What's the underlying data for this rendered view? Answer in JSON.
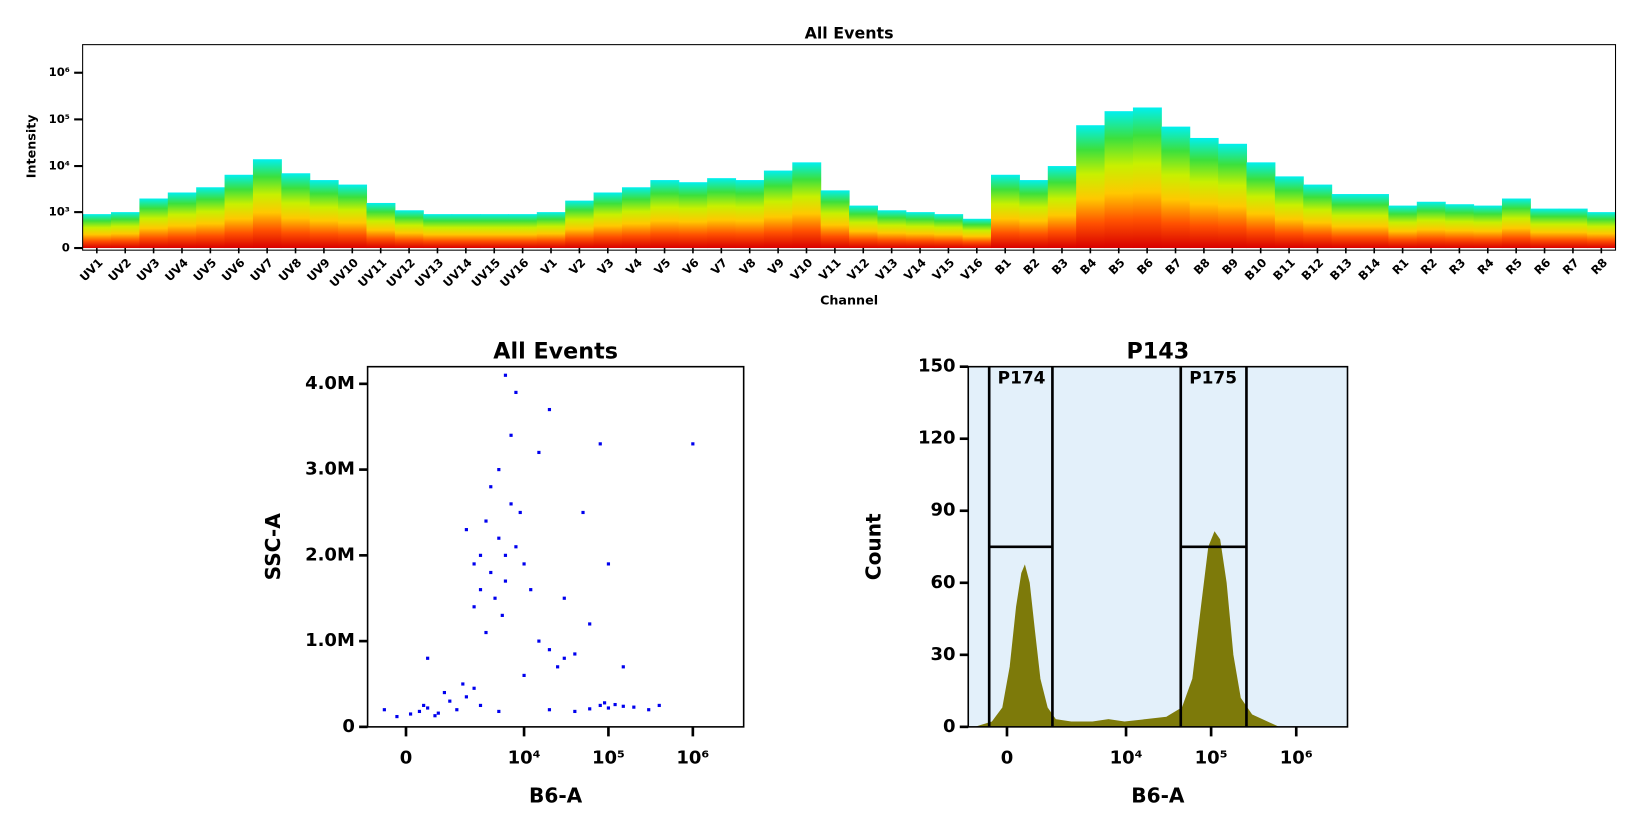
{
  "chart_data": [
    {
      "type": "spectrum",
      "title": "All Events",
      "xlabel": "Channel",
      "ylabel": "Intensity",
      "categories": [
        "UV1",
        "UV2",
        "UV3",
        "UV4",
        "UV5",
        "UV6",
        "UV7",
        "UV8",
        "UV9",
        "UV10",
        "UV11",
        "UV12",
        "UV13",
        "UV14",
        "UV15",
        "UV16",
        "V1",
        "V2",
        "V3",
        "V4",
        "V5",
        "V6",
        "V7",
        "V8",
        "V9",
        "V10",
        "V11",
        "V12",
        "V13",
        "V14",
        "V15",
        "V16",
        "B1",
        "B2",
        "B3",
        "B4",
        "B5",
        "B6",
        "B7",
        "B8",
        "B9",
        "B10",
        "B11",
        "B12",
        "B13",
        "B14",
        "R1",
        "R2",
        "R3",
        "R4",
        "R5",
        "R6",
        "R7",
        "R8"
      ],
      "values": [
        900,
        1000,
        2000,
        2700,
        3500,
        6500,
        14000,
        7000,
        5000,
        4000,
        1600,
        1100,
        900,
        900,
        900,
        900,
        1000,
        1800,
        2700,
        3500,
        5000,
        4500,
        5500,
        5000,
        8000,
        12000,
        3000,
        1400,
        1100,
        1000,
        900,
        700,
        6500,
        5000,
        10000,
        75000,
        150000,
        180000,
        70000,
        40000,
        30000,
        12000,
        6000,
        4000,
        2500,
        2500,
        1400,
        1700,
        1500,
        1400,
        2000,
        1200,
        1200,
        1000
      ],
      "colormap": [
        "#d80000",
        "#ff5000",
        "#ffc800",
        "#c8f000",
        "#3ce03c",
        "#00f0f0"
      ],
      "y_scale": "biexponential",
      "ylim": [
        0,
        4000000
      ],
      "yticks": [
        0,
        {
          "value": 1000,
          "label": "10³"
        },
        {
          "value": 10000,
          "label": "10⁴"
        },
        {
          "value": 100000,
          "label": "10⁵"
        },
        {
          "value": 1000000,
          "label": "10⁶"
        }
      ]
    },
    {
      "type": "scatter",
      "title": "All Events",
      "xlabel": "B6-A",
      "ylabel": "SSC-A",
      "color": "#0000ee",
      "x": [
        100,
        300,
        -200,
        500,
        800,
        1200,
        1500,
        2000,
        400,
        -500,
        2500,
        700,
        1800,
        1000,
        3000,
        3000,
        4000,
        5000,
        2500,
        6000,
        3500,
        8000,
        4500,
        2000,
        7000,
        5500,
        3000,
        10000,
        4000,
        6000,
        2500,
        9000,
        12000,
        5000,
        7000,
        8000,
        6000,
        15000,
        3500,
        20000,
        30000,
        25000,
        40000,
        15000,
        80000,
        100000,
        120000,
        150000,
        200000,
        90000,
        300000,
        60000,
        20000,
        40000,
        30000,
        50000,
        80000,
        60000,
        100000,
        1000000,
        10000,
        500,
        20000,
        150000,
        400000,
        5000
      ],
      "y": [
        150000,
        180000,
        120000,
        220000,
        160000,
        300000,
        200000,
        350000,
        250000,
        200000,
        450000,
        130000,
        500000,
        400000,
        250000,
        2000000,
        1800000,
        2200000,
        1900000,
        1700000,
        2400000,
        2100000,
        1500000,
        2300000,
        2600000,
        1300000,
        1600000,
        1900000,
        2800000,
        2000000,
        1400000,
        2500000,
        1600000,
        3000000,
        3400000,
        3900000,
        4100000,
        3200000,
        1100000,
        900000,
        800000,
        700000,
        850000,
        1000000,
        250000,
        220000,
        260000,
        240000,
        230000,
        280000,
        200000,
        210000,
        200000,
        180000,
        1500000,
        2500000,
        3300000,
        1200000,
        1900000,
        3300000,
        600000,
        800000,
        3700000,
        700000,
        250000,
        180000
      ],
      "x_scale": "biexponential",
      "xlim": [
        -1000,
        4000000
      ],
      "xticks": [
        0,
        {
          "value": 10000,
          "label": "10⁴"
        },
        {
          "value": 100000,
          "label": "10⁵"
        },
        {
          "value": 1000000,
          "label": "10⁶"
        }
      ],
      "ylim": [
        0,
        4200000
      ],
      "yticks": [
        0,
        {
          "value": 1000000,
          "label": "1.0M"
        },
        {
          "value": 2000000,
          "label": "2.0M"
        },
        {
          "value": 3000000,
          "label": "3.0M"
        },
        {
          "value": 4000000,
          "label": "4.0M"
        }
      ]
    },
    {
      "type": "area",
      "title": "P143",
      "xlabel": "B6-A",
      "ylabel": "Count",
      "color": "#7d7a0a",
      "background": "#e3f0fa",
      "x": [
        -740,
        -330,
        -90,
        70,
        210,
        330,
        400,
        510,
        650,
        810,
        1050,
        1380,
        2200,
        4000,
        6200,
        9600,
        17000,
        30000,
        46000,
        61000,
        77000,
        94000,
        110000,
        126000,
        150000,
        180000,
        220000,
        300000,
        460000,
        610000
      ],
      "values": [
        0,
        2,
        8,
        25,
        50,
        64,
        67,
        60,
        40,
        20,
        8,
        3,
        2,
        2,
        3,
        2,
        3,
        4,
        8,
        20,
        50,
        75,
        81,
        78,
        60,
        30,
        12,
        5,
        2,
        0
      ],
      "gates": [
        {
          "name": "P174",
          "range": [
            -400,
            1250
          ],
          "level": 75
        },
        {
          "name": "P175",
          "range": [
            44000,
            260000
          ],
          "level": 75
        }
      ],
      "x_scale": "biexponential",
      "xlim": [
        -1000,
        4000000
      ],
      "xticks": [
        0,
        {
          "value": 10000,
          "label": "10⁴"
        },
        {
          "value": 100000,
          "label": "10⁵"
        },
        {
          "value": 1000000,
          "label": "10⁶"
        }
      ],
      "ylim": [
        0,
        150
      ],
      "yticks": [
        0,
        30,
        60,
        90,
        120,
        150
      ]
    }
  ]
}
